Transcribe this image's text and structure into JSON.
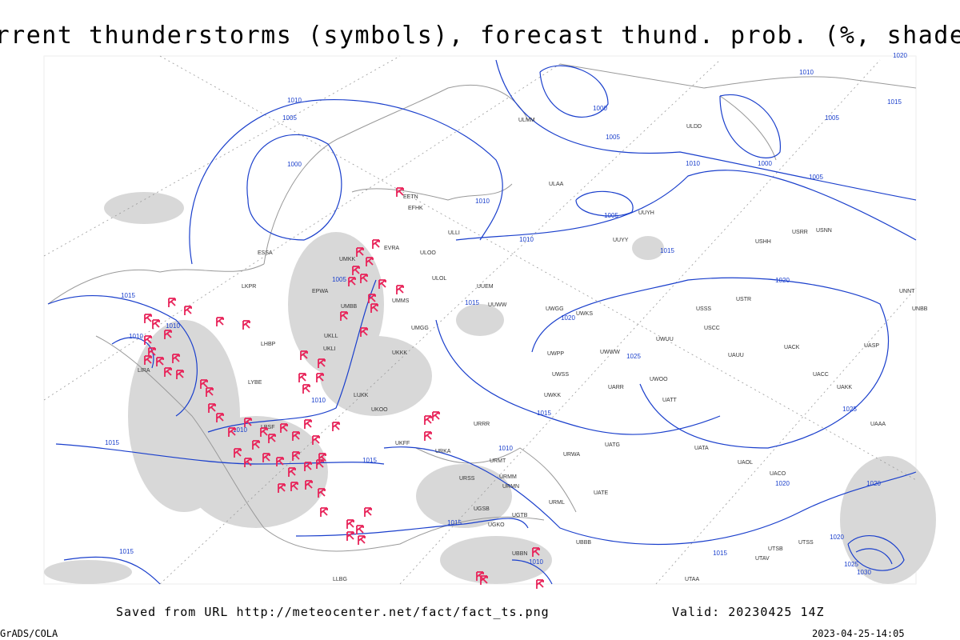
{
  "header": {
    "title": "Current thunderstorms (symbols), forecast thund. prob. (%, shaded)"
  },
  "isobar_labels": [
    "1010",
    "1005",
    "1000",
    "1005",
    "1010",
    "1010",
    "1015",
    "1015",
    "1010",
    "1010",
    "1010",
    "1010",
    "1015",
    "1015",
    "1015",
    "1015",
    "1010",
    "1010",
    "1015",
    "1020",
    "1025",
    "1015",
    "1020",
    "1025",
    "1020",
    "1020",
    "1015",
    "1000",
    "1005",
    "1010",
    "1000",
    "1005",
    "1005",
    "1015",
    "1010",
    "1005",
    "1020",
    "1020",
    "1025",
    "1030"
  ],
  "stations": [
    "EFHK",
    "ULLI",
    "ULOO",
    "ULOL",
    "UUEM",
    "UUWW",
    "UMMS",
    "UMGG",
    "UKLL",
    "UKLI",
    "UKKK",
    "LUKK",
    "UKOO",
    "URRR",
    "UKFF",
    "URKA",
    "URSS",
    "UGSB",
    "UGTB",
    "UBBB",
    "UTSS",
    "UAAA",
    "UACC",
    "UAKK",
    "UASP",
    "UUYY",
    "UUYH",
    "ULAA",
    "ULDD",
    "ULMM",
    "USSS",
    "USCC",
    "USTR",
    "USHH",
    "USRR",
    "USNN",
    "UNNT",
    "UNBB",
    "UACK",
    "UAUU",
    "UWOO",
    "UATT",
    "UARR",
    "UWUU",
    "UWWW",
    "UWPP",
    "UWSS",
    "UWKK",
    "UWGG",
    "UWKS",
    "UATG",
    "UATA",
    "UAOL",
    "UACO",
    "UATE",
    "URWA",
    "URMT",
    "URMM",
    "URMN",
    "URML",
    "UGKO",
    "UBBN",
    "UTAA",
    "UTAV",
    "UTSB",
    "LIRA",
    "LYBE",
    "LBSF",
    "LHBP",
    "LKPR",
    "EPWA",
    "UMBB",
    "EETN",
    "EVRA",
    "UMKK",
    "ESSA",
    "LLBG"
  ],
  "footer": {
    "source": "Saved from URL http://meteocenter.net/fact/fact_ts.png",
    "valid": "Valid: 20230425 14Z",
    "software": "GrADS/COLA",
    "timestamp": "2023-04-25-14:05"
  }
}
